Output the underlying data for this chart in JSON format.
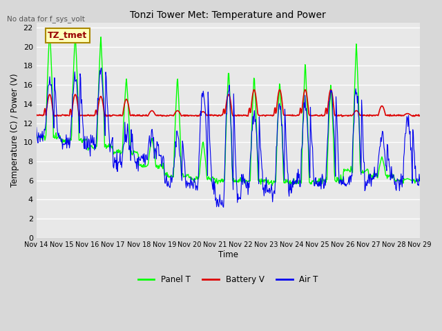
{
  "title": "Tonzi Tower Met: Temperature and Power",
  "no_data_text": "No data for f_sys_volt",
  "ylabel": "Temperature (C) / Power (V)",
  "xlabel": "Time",
  "ylim": [
    0,
    22.5
  ],
  "yticks": [
    0,
    2,
    4,
    6,
    8,
    10,
    12,
    14,
    16,
    18,
    20,
    22
  ],
  "x_tick_labels": [
    "Nov 14",
    "Nov 15",
    "Nov 16",
    "Nov 17",
    "Nov 18",
    "Nov 19",
    "Nov 20",
    "Nov 21",
    "Nov 22",
    "Nov 23",
    "Nov 24",
    "Nov 25",
    "Nov 26",
    "Nov 27",
    "Nov 28",
    "Nov 29"
  ],
  "bg_color": "#d8d8d8",
  "plot_bg_color": "#e8e8e8",
  "grid_color": "#ffffff",
  "panel_t_color": "#00ff00",
  "battery_v_color": "#dd0000",
  "air_t_color": "#0000ee",
  "legend_label_panel": "Panel T",
  "legend_label_battery": "Battery V",
  "legend_label_air": "Air T",
  "annotation_text": "TZ_tmet",
  "annotation_bg": "#ffffbb",
  "annotation_border": "#aa8800"
}
